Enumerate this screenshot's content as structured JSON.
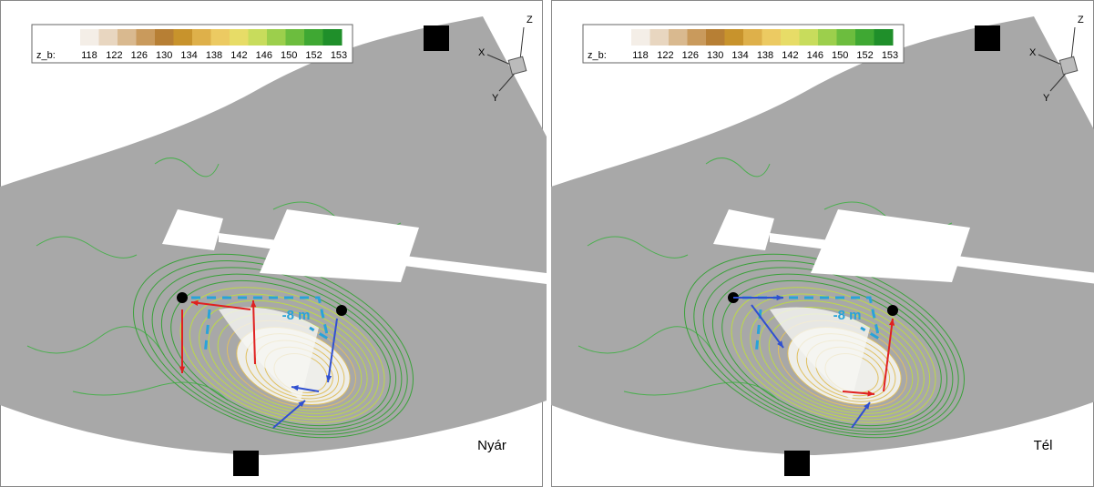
{
  "panels": [
    {
      "colorbar_label": "z_b:",
      "colorbar_ticks": [
        "118",
        "122",
        "126",
        "130",
        "134",
        "138",
        "142",
        "146",
        "150",
        "152",
        "153"
      ],
      "annotation": "-8 m",
      "label": "Nyár",
      "axes": {
        "x": "X",
        "y": "Y",
        "z": "Z"
      }
    },
    {
      "colorbar_label": "z_b:",
      "colorbar_ticks": [
        "118",
        "122",
        "126",
        "130",
        "134",
        "138",
        "142",
        "146",
        "150",
        "152",
        "153"
      ],
      "annotation": "-8 m",
      "label": "Tél",
      "axes": {
        "x": "X",
        "y": "Y",
        "z": "Z"
      }
    }
  ]
}
